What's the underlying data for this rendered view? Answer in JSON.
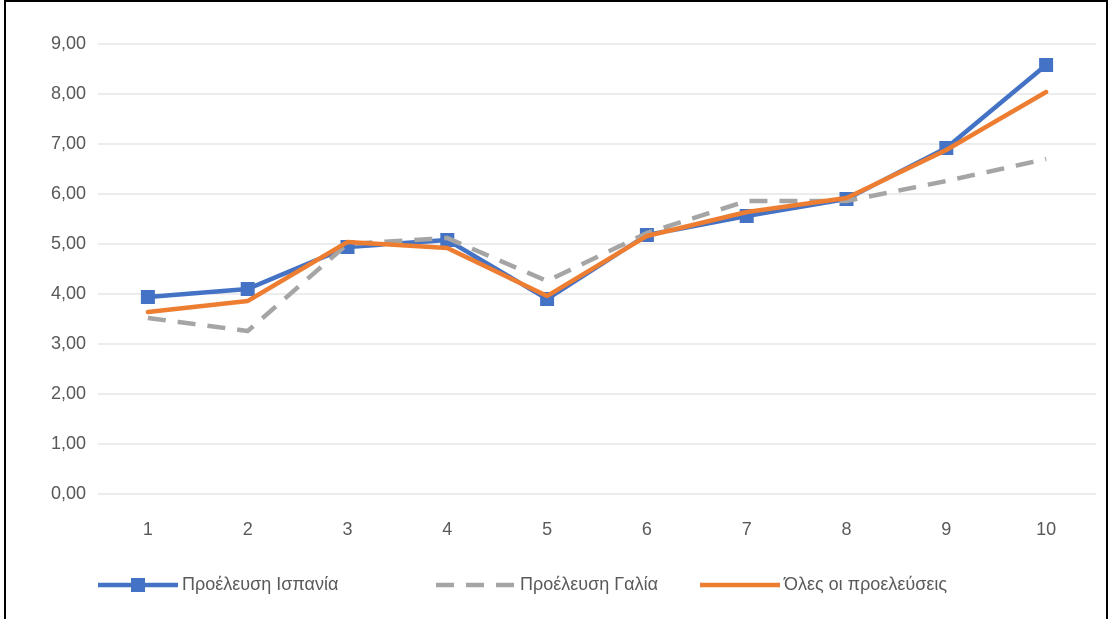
{
  "chart_data": {
    "type": "line",
    "categories": [
      "1",
      "2",
      "3",
      "4",
      "5",
      "6",
      "7",
      "8",
      "9",
      "10"
    ],
    "series": [
      {
        "name": "Προέλευση Ισπανία",
        "color": "#4472c4",
        "marker": "square",
        "values": [
          3.94,
          4.1,
          4.94,
          5.08,
          3.9,
          5.18,
          5.56,
          5.9,
          6.92,
          8.58
        ]
      },
      {
        "name": "Προέλευση Γαλία",
        "color": "#a5a5a5",
        "dashed": true,
        "values": [
          3.52,
          3.26,
          5.0,
          5.12,
          4.26,
          5.22,
          5.86,
          5.86,
          6.26,
          6.7
        ]
      },
      {
        "name": "Όλες οι προελεύσεις",
        "color": "#ed7d31",
        "values": [
          3.64,
          3.86,
          5.04,
          4.92,
          3.96,
          5.16,
          5.64,
          5.92,
          6.88,
          8.04
        ]
      }
    ],
    "ylim": [
      0,
      9
    ],
    "yticks": [
      {
        "value": 0,
        "label": "0,00"
      },
      {
        "value": 1,
        "label": "1,00"
      },
      {
        "value": 2,
        "label": "2,00"
      },
      {
        "value": 3,
        "label": "3,00"
      },
      {
        "value": 4,
        "label": "4,00"
      },
      {
        "value": 5,
        "label": "5,00"
      },
      {
        "value": 6,
        "label": "6,00"
      },
      {
        "value": 7,
        "label": "7,00"
      },
      {
        "value": 8,
        "label": "8,00"
      },
      {
        "value": 9,
        "label": "9,00"
      }
    ],
    "grid": true,
    "legend": "bottom"
  }
}
